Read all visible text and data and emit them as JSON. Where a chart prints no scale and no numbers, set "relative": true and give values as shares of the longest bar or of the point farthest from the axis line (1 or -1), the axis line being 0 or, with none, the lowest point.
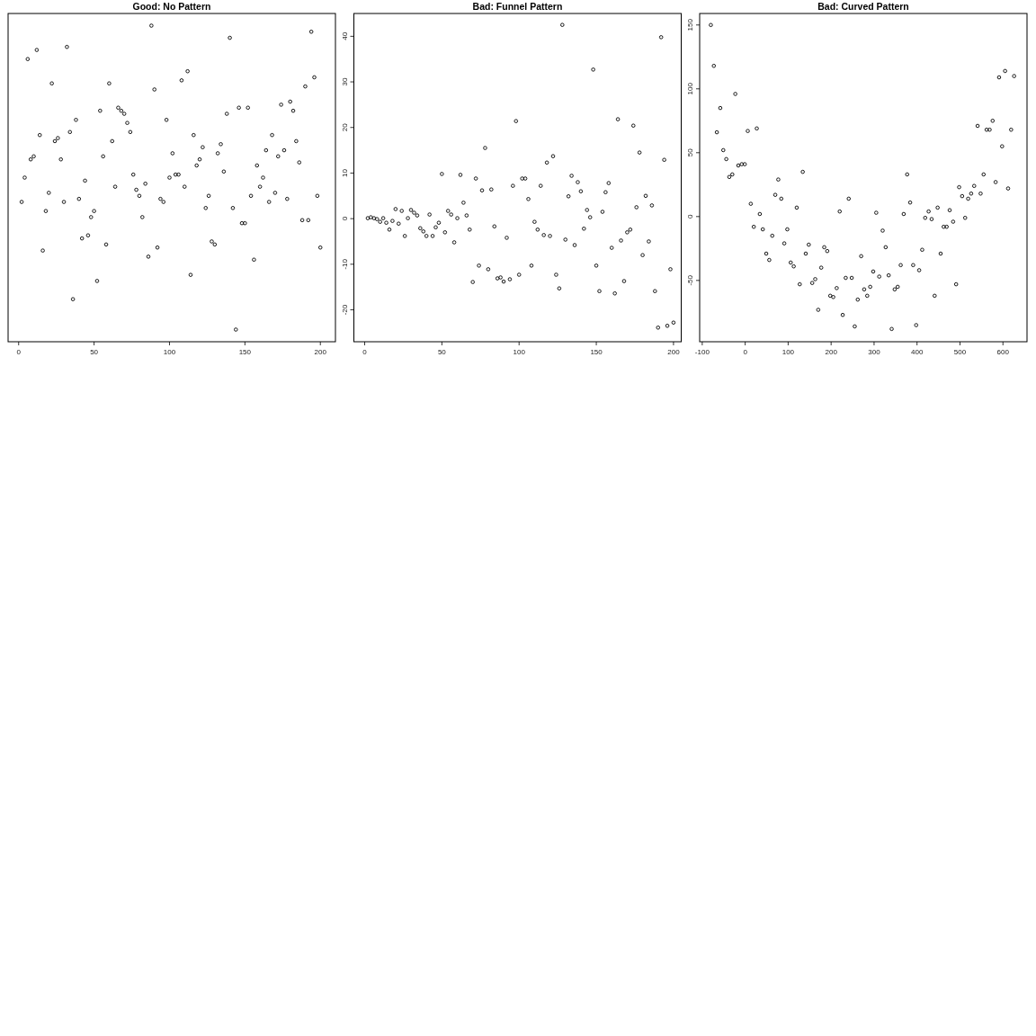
{
  "chart_data": [
    {
      "type": "scatter",
      "title": "Good: No Pattern",
      "relative": true,
      "color": "#000000",
      "marker": "circle",
      "xlim": [
        -7,
        210
      ],
      "xticks": [
        0,
        50,
        100,
        150,
        200
      ],
      "x": [
        2,
        4,
        6,
        8,
        10,
        12,
        14,
        16,
        18,
        20,
        22,
        24,
        26,
        28,
        30,
        32,
        34,
        36,
        38,
        40,
        42,
        44,
        46,
        48,
        50,
        52,
        54,
        56,
        58,
        60,
        62,
        64,
        66,
        68,
        70,
        72,
        74,
        76,
        78,
        80,
        82,
        84,
        86,
        88,
        90,
        92,
        94,
        96,
        98,
        100,
        102,
        104,
        106,
        108,
        110,
        112,
        114,
        116,
        118,
        120,
        122,
        124,
        126,
        128,
        130,
        132,
        134,
        136,
        138,
        140,
        142,
        144,
        146,
        148,
        150,
        152,
        154,
        156,
        158,
        160,
        162,
        164,
        166,
        168,
        170,
        172,
        174,
        176,
        178,
        180,
        182,
        184,
        186,
        188,
        190,
        192,
        194,
        196,
        198,
        200
      ],
      "values": [
        0.42,
        0.5,
        0.89,
        0.56,
        0.57,
        0.92,
        0.64,
        0.26,
        0.39,
        0.45,
        0.81,
        0.62,
        0.63,
        0.56,
        0.42,
        0.93,
        0.65,
        0.1,
        0.69,
        0.43,
        0.3,
        0.49,
        0.31,
        0.37,
        0.39,
        0.16,
        0.72,
        0.57,
        0.28,
        0.81,
        0.62,
        0.47,
        0.73,
        0.72,
        0.71,
        0.68,
        0.65,
        0.51,
        0.46,
        0.44,
        0.37,
        0.48,
        0.24,
        1,
        0.79,
        0.27,
        0.43,
        0.42,
        0.69,
        0.5,
        0.58,
        0.51,
        0.51,
        0.82,
        0.47,
        0.85,
        0.18,
        0.64,
        0.54,
        0.56,
        0.6,
        0.4,
        0.44,
        0.29,
        0.28,
        0.58,
        0.61,
        0.52,
        0.71,
        0.96,
        0.4,
        0,
        0.73,
        0.35,
        0.35,
        0.73,
        0.44,
        0.23,
        0.54,
        0.47,
        0.5,
        0.59,
        0.42,
        0.64,
        0.45,
        0.57,
        0.74,
        0.59,
        0.43,
        0.75,
        0.72,
        0.62,
        0.55,
        0.36,
        0.8,
        0.36,
        0.98,
        0.83,
        0.44,
        0.27
      ]
    },
    {
      "type": "scatter",
      "title": "Bad: Funnel Pattern",
      "color": "#000000",
      "marker": "circle",
      "xlim": [
        -7,
        205
      ],
      "xticks": [
        0,
        50,
        100,
        150,
        200
      ],
      "ylim": [
        -27,
        45
      ],
      "yticks": [
        -20,
        -10,
        0,
        10,
        20,
        30,
        40
      ],
      "x": [
        2,
        4,
        6,
        8,
        10,
        12,
        14,
        16,
        18,
        20,
        22,
        24,
        26,
        28,
        30,
        32,
        34,
        36,
        38,
        40,
        42,
        44,
        46,
        48,
        50,
        52,
        54,
        56,
        58,
        60,
        62,
        64,
        66,
        68,
        70,
        72,
        74,
        76,
        78,
        80,
        82,
        84,
        86,
        88,
        90,
        92,
        94,
        96,
        98,
        100,
        102,
        104,
        106,
        108,
        110,
        112,
        114,
        116,
        118,
        120,
        122,
        124,
        126,
        128,
        130,
        132,
        134,
        136,
        138,
        140,
        142,
        144,
        146,
        148,
        150,
        152,
        154,
        156,
        158,
        160,
        162,
        164,
        166,
        168,
        170,
        172,
        174,
        176,
        178,
        180,
        182,
        184,
        186,
        188,
        190,
        192,
        194,
        196,
        198,
        200
      ],
      "values": [
        0.1,
        0.3,
        0.1,
        -0.1,
        -0.7,
        0.1,
        -0.9,
        -2.4,
        -0.5,
        2.1,
        -1.1,
        1.7,
        -3.8,
        0.1,
        1.9,
        1.3,
        0.7,
        -2.1,
        -2.8,
        -3.8,
        0.9,
        -3.8,
        -1.9,
        -0.9,
        9.8,
        -3.0,
        1.7,
        0.9,
        -5.2,
        0.1,
        9.6,
        3.5,
        0.7,
        -2.4,
        -13.9,
        8.8,
        -10.3,
        6.2,
        15.5,
        -11.1,
        6.4,
        -1.7,
        -13.1,
        -12.9,
        -13.8,
        -4.2,
        -13.3,
        7.2,
        21.4,
        -12.3,
        8.8,
        8.8,
        4.3,
        -10.3,
        -0.7,
        -2.4,
        7.2,
        -3.6,
        12.3,
        -3.8,
        13.7,
        -12.3,
        -15.3,
        42.5,
        -4.6,
        4.9,
        9.4,
        -5.8,
        8.0,
        6.0,
        -2.2,
        1.9,
        0.3,
        32.7,
        -10.3,
        -15.9,
        1.5,
        5.8,
        7.8,
        -6.4,
        -16.4,
        21.8,
        -4.8,
        -13.7,
        -3.0,
        -2.4,
        20.4,
        2.5,
        14.5,
        -8.0,
        5.0,
        -5.0,
        2.9,
        -15.9,
        -23.9,
        39.8,
        12.9,
        -23.5,
        -11.1,
        -22.8
      ]
    },
    {
      "type": "scatter",
      "title": "Bad: Curved Pattern",
      "color": "#000000",
      "marker": "circle",
      "xlim": [
        -106,
        656
      ],
      "xticks": [
        -100,
        0,
        100,
        200,
        300,
        400,
        500,
        600
      ],
      "ylim": [
        -98,
        159
      ],
      "yticks": [
        -50,
        0,
        50,
        100,
        150
      ],
      "x": [
        -80,
        -73,
        -66,
        -58,
        -51,
        -44,
        -37,
        -30,
        -23,
        -16,
        -8,
        -1,
        6,
        13,
        20,
        27,
        34,
        41,
        49,
        56,
        63,
        70,
        77,
        84,
        91,
        98,
        106,
        113,
        120,
        127,
        134,
        141,
        148,
        156,
        163,
        170,
        177,
        184,
        191,
        198,
        205,
        213,
        220,
        227,
        234,
        241,
        248,
        255,
        262,
        270,
        277,
        284,
        291,
        298,
        305,
        312,
        320,
        327,
        334,
        341,
        348,
        355,
        362,
        369,
        377,
        384,
        391,
        398,
        405,
        412,
        419,
        427,
        434,
        441,
        448,
        455,
        462,
        469,
        476,
        484,
        491,
        498,
        505,
        512,
        519,
        526,
        533,
        541,
        548,
        555,
        562,
        569,
        576,
        583,
        591,
        598,
        605,
        612,
        619,
        626
      ],
      "values": [
        150,
        118,
        66,
        85,
        52,
        45,
        31,
        33,
        96,
        40,
        41,
        41,
        67,
        10,
        -8,
        69,
        2,
        -10,
        -29,
        -34,
        -15,
        17,
        29,
        14,
        -21,
        -10,
        -36,
        -39,
        7,
        -53,
        35,
        -29,
        -22,
        -52,
        -49,
        -73,
        -40,
        -24,
        -27,
        -62,
        -63,
        -56,
        4,
        -77,
        -48,
        14,
        -48,
        -86,
        -65,
        -31,
        -57,
        -62,
        -55,
        -43,
        3,
        -47,
        -11,
        -24,
        -46,
        -88,
        -57,
        -55,
        -38,
        2,
        33,
        11,
        -38,
        -85,
        -42,
        -26,
        -1,
        4,
        -2,
        -62,
        7,
        -29,
        -8,
        -8,
        5,
        -4,
        -53,
        23,
        16,
        -1,
        14,
        18,
        24,
        71,
        18,
        33,
        68,
        68,
        75,
        27,
        109,
        55,
        114,
        22,
        68,
        110
      ]
    }
  ]
}
